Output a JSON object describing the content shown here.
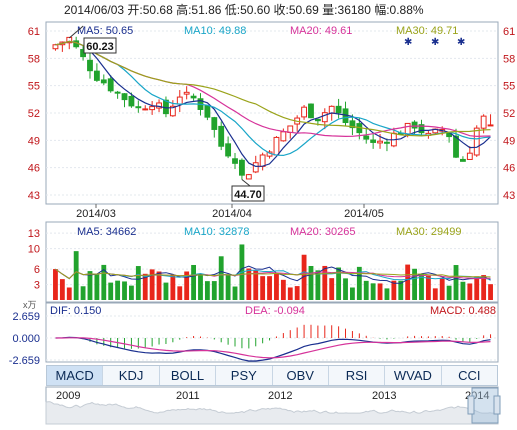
{
  "header": {
    "date": "2014/06/03",
    "open_label": "开:",
    "open": "50.68",
    "high_label": "高:",
    "high": "51.86",
    "low_label": "低:",
    "low": "50.60",
    "close_label": "收:",
    "close": "50.69",
    "volume_label": "量:",
    "volume": "36180",
    "change_label": "幅:",
    "change": "0.88%"
  },
  "price_panel": {
    "ma": [
      {
        "label": "MA5: 50.65",
        "color": "#1a2f8f"
      },
      {
        "label": "MA10: 49.88",
        "color": "#1aa6c8"
      },
      {
        "label": "MA20: 49.61",
        "color": "#d6339a"
      },
      {
        "label": "MA30: 49.71",
        "color": "#9aa31a"
      }
    ],
    "yticks": [
      "61",
      "58",
      "55",
      "52",
      "49",
      "46",
      "43"
    ],
    "xticks": [
      "2014/03",
      "2014/04",
      "2014/05"
    ],
    "annot_high": "60.23",
    "annot_low": "44.70",
    "up_color": "#e8261b",
    "down_color": "#21a32d"
  },
  "volume_panel": {
    "ma": [
      {
        "label": "MA5: 34662",
        "color": "#1a2f8f"
      },
      {
        "label": "MA10: 32878",
        "color": "#1aa6c8"
      },
      {
        "label": "MA20: 30265",
        "color": "#d6339a"
      },
      {
        "label": "MA30: 29499",
        "color": "#9aa31a"
      }
    ],
    "yticks": [
      "13",
      "10",
      "6",
      "3"
    ],
    "unit": "x万"
  },
  "macd_panel": {
    "dif": "DIF: 0.150",
    "dea": "DEA: -0.094",
    "macd": "MACD: 0.488",
    "yticks": [
      "2.659",
      "0.000",
      "-2.659"
    ]
  },
  "tabs": [
    "MACD",
    "KDJ",
    "BOLL",
    "PSY",
    "OBV",
    "RSI",
    "WVAD",
    "CCI"
  ],
  "nav_years": [
    "2009",
    "2011",
    "2012",
    "2013",
    "2014"
  ],
  "chart_data": {
    "type": "candlestick",
    "y_range": [
      43,
      61
    ],
    "annotations": [
      {
        "text": "60.23",
        "x": "2014/02",
        "y": 60.23
      },
      {
        "text": "44.70",
        "x": "2014/04",
        "y": 44.7
      }
    ],
    "series": [
      {
        "name": "MA5",
        "last": 50.65
      },
      {
        "name": "MA10",
        "last": 49.88
      },
      {
        "name": "MA20",
        "last": 49.61
      },
      {
        "name": "MA30",
        "last": 49.71
      }
    ],
    "latest": {
      "date": "2014/06/03",
      "open": 50.68,
      "high": 51.86,
      "low": 50.6,
      "close": 50.69,
      "volume": 36180,
      "change_pct": 0.88
    },
    "volume": {
      "y_ticks": [
        3,
        6,
        10,
        13
      ],
      "unit": "万",
      "ma": {
        "MA5": 34662,
        "MA10": 32878,
        "MA20": 30265,
        "MA30": 29499
      }
    },
    "macd": {
      "y_range": [
        -2.659,
        2.659
      ],
      "dif": 0.15,
      "dea": -0.094,
      "macd": 0.488
    }
  }
}
